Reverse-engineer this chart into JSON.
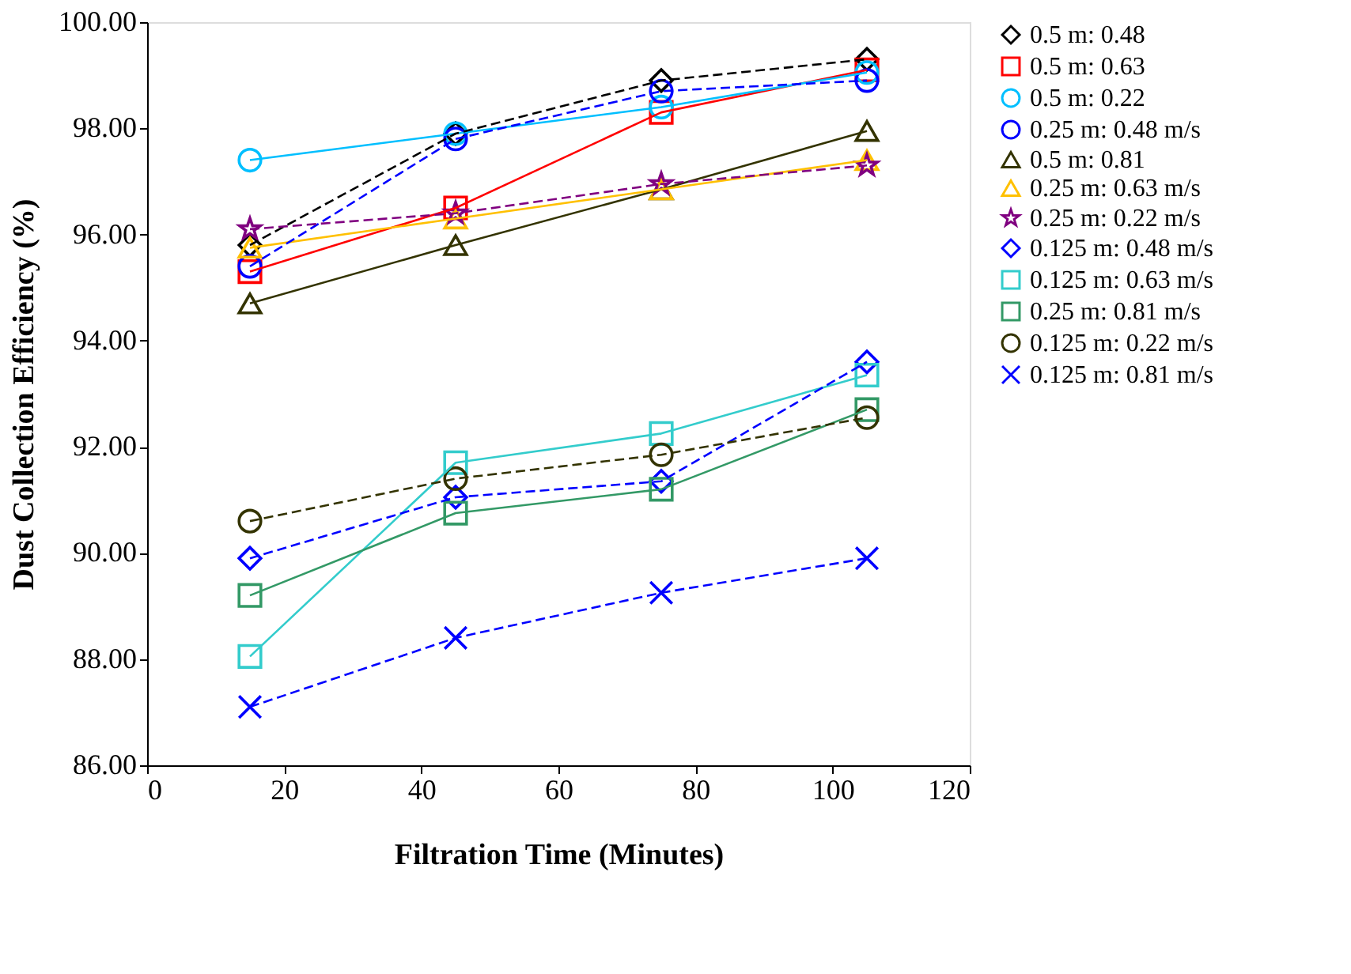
{
  "chart_data": {
    "type": "line",
    "xlabel": "Filtration Time (Minutes)",
    "ylabel": "Dust Collection Efficiency (%)",
    "x": [
      15,
      45,
      75,
      105
    ],
    "xlim": [
      0,
      120
    ],
    "xticks": [
      0,
      20,
      40,
      60,
      80,
      100,
      120
    ],
    "ylim": [
      86,
      100
    ],
    "yticks": [
      {
        "value": 86,
        "label": "86.00"
      },
      {
        "value": 88,
        "label": "88.00"
      },
      {
        "value": 90,
        "label": "90.00"
      },
      {
        "value": 92,
        "label": "92.00"
      },
      {
        "value": 94,
        "label": "94.00"
      },
      {
        "value": 96,
        "label": "96.00"
      },
      {
        "value": 98,
        "label": "98.00"
      },
      {
        "value": 100,
        "label": "100.00"
      }
    ],
    "grid": false,
    "legend": "right",
    "series": [
      {
        "name": "0.5 m: 0.48",
        "color": "#000000",
        "marker": "diamond",
        "line_style": "dashed",
        "values": [
          95.8,
          97.9,
          98.9,
          99.3
        ]
      },
      {
        "name": "0.5 m: 0.63",
        "color": "#ff0000",
        "marker": "square",
        "line_style": "solid",
        "values": [
          95.3,
          96.5,
          98.3,
          99.1
        ]
      },
      {
        "name": "0.5 m: 0.22",
        "color": "#00bfff",
        "marker": "circle",
        "line_style": "solid",
        "values": [
          97.4,
          97.9,
          98.4,
          99.05
        ]
      },
      {
        "name": "0.25 m: 0.48 m/s",
        "color": "#0000ff",
        "marker": "circle",
        "line_style": "dashed",
        "values": [
          95.4,
          97.8,
          98.7,
          98.9
        ]
      },
      {
        "name": "0.5 m: 0.81",
        "color": "#333300",
        "marker": "triangle",
        "line_style": "solid",
        "values": [
          94.7,
          95.8,
          96.85,
          97.95
        ]
      },
      {
        "name": "0.25 m: 0.63 m/s",
        "color": "#ffc000",
        "marker": "triangle",
        "line_style": "solid",
        "values": [
          95.75,
          96.3,
          96.85,
          97.4
        ]
      },
      {
        "name": "0.25 m: 0.22 m/s",
        "color": "#800080",
        "marker": "star",
        "line_style": "dashed",
        "values": [
          96.1,
          96.4,
          96.95,
          97.3
        ]
      },
      {
        "name": "0.125 m: 0.48 m/s",
        "color": "#0000ff",
        "marker": "diamond",
        "line_style": "dashed",
        "values": [
          89.9,
          91.05,
          91.35,
          93.6
        ]
      },
      {
        "name": "0.125 m: 0.63 m/s",
        "color": "#33cccc",
        "marker": "square",
        "line_style": "solid",
        "values": [
          88.05,
          91.7,
          92.25,
          93.35
        ]
      },
      {
        "name": "0.25 m: 0.81 m/s",
        "color": "#339966",
        "marker": "square",
        "line_style": "solid",
        "values": [
          89.2,
          90.75,
          91.2,
          92.7
        ]
      },
      {
        "name": "0.125 m: 0.22 m/s",
        "color": "#333300",
        "marker": "circle",
        "line_style": "dashed",
        "values": [
          90.6,
          91.4,
          91.85,
          92.55
        ]
      },
      {
        "name": "0.125 m: 0.81 m/s",
        "color": "#0000ff",
        "marker": "cross",
        "line_style": "dashed",
        "values": [
          87.1,
          88.4,
          89.25,
          89.9
        ]
      }
    ]
  }
}
